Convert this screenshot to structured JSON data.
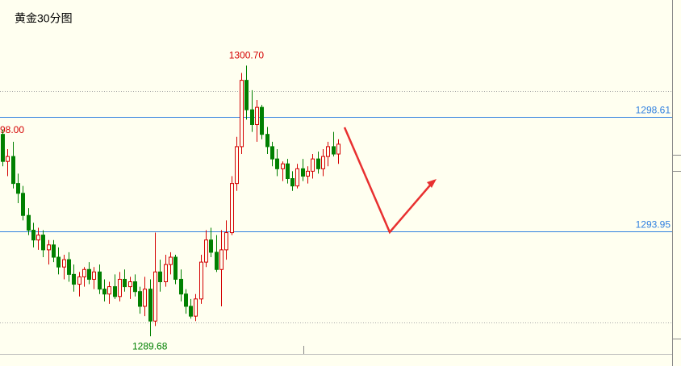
{
  "chart_data": {
    "type": "candlestick",
    "title": "黄金30分图",
    "ylim": [
      1288.93,
      1303.37
    ],
    "up_color": "#d40000",
    "down_color": "#008000",
    "price_lines": [
      {
        "value": 1298.61,
        "label": "1298.61"
      },
      {
        "value": 1293.95,
        "label": "1293.95"
      }
    ],
    "grid_lines": [
      1299.66,
      1290.24
    ],
    "extremes": [
      {
        "value": 1300.7,
        "label": "1300.70"
      },
      {
        "value": 1289.68,
        "label": "1289.68"
      }
    ],
    "annotations": [
      "98.00"
    ],
    "candles": [
      [
        1297.9,
        1298.1,
        1296.6,
        1296.8
      ],
      [
        1296.8,
        1297.3,
        1296.2,
        1297.0
      ],
      [
        1297.0,
        1297.6,
        1295.7,
        1295.9
      ],
      [
        1295.9,
        1296.3,
        1295.1,
        1295.5
      ],
      [
        1295.5,
        1295.8,
        1294.4,
        1294.6
      ],
      [
        1294.6,
        1294.9,
        1293.8,
        1294.0
      ],
      [
        1294.0,
        1294.3,
        1293.3,
        1293.6
      ],
      [
        1293.6,
        1294.1,
        1293.2,
        1293.8
      ],
      [
        1293.8,
        1294.0,
        1292.9,
        1293.2
      ],
      [
        1293.2,
        1293.6,
        1292.6,
        1293.4
      ],
      [
        1293.4,
        1293.6,
        1292.7,
        1292.9
      ],
      [
        1292.9,
        1293.3,
        1292.2,
        1292.5
      ],
      [
        1292.5,
        1293.0,
        1292.0,
        1292.8
      ],
      [
        1292.8,
        1293.1,
        1291.9,
        1292.2
      ],
      [
        1292.2,
        1292.6,
        1291.5,
        1291.8
      ],
      [
        1291.8,
        1292.3,
        1291.3,
        1292.1
      ],
      [
        1292.1,
        1292.5,
        1291.7,
        1292.4
      ],
      [
        1292.4,
        1292.7,
        1291.8,
        1292.0
      ],
      [
        1292.0,
        1292.5,
        1291.6,
        1292.3
      ],
      [
        1292.3,
        1292.6,
        1291.4,
        1291.6
      ],
      [
        1291.6,
        1292.0,
        1291.1,
        1291.4
      ],
      [
        1291.4,
        1291.9,
        1291.0,
        1291.7
      ],
      [
        1291.7,
        1292.2,
        1291.2,
        1291.3
      ],
      [
        1291.3,
        1292.3,
        1291.1,
        1292.0
      ],
      [
        1292.0,
        1292.4,
        1291.5,
        1291.7
      ],
      [
        1291.7,
        1292.1,
        1291.2,
        1291.9
      ],
      [
        1291.9,
        1292.2,
        1291.3,
        1291.5
      ],
      [
        1291.5,
        1291.7,
        1290.6,
        1290.9
      ],
      [
        1290.9,
        1292.1,
        1290.5,
        1291.6
      ],
      [
        1291.6,
        1292.0,
        1289.68,
        1290.3
      ],
      [
        1290.3,
        1293.9,
        1290.1,
        1292.3
      ],
      [
        1292.3,
        1292.8,
        1291.5,
        1291.9
      ],
      [
        1291.9,
        1293.0,
        1291.7,
        1292.6
      ],
      [
        1292.6,
        1293.1,
        1292.2,
        1292.9
      ],
      [
        1292.9,
        1293.0,
        1291.8,
        1292.0
      ],
      [
        1292.0,
        1292.4,
        1291.1,
        1291.4
      ],
      [
        1291.4,
        1291.6,
        1290.6,
        1290.9
      ],
      [
        1290.9,
        1291.2,
        1290.4,
        1290.5
      ],
      [
        1290.5,
        1291.4,
        1290.3,
        1291.2
      ],
      [
        1291.2,
        1293.0,
        1291.0,
        1292.7
      ],
      [
        1292.7,
        1294.0,
        1292.5,
        1293.6
      ],
      [
        1293.6,
        1294.1,
        1292.9,
        1293.1
      ],
      [
        1293.1,
        1293.8,
        1292.3,
        1292.4
      ],
      [
        1292.4,
        1294.0,
        1290.9,
        1293.2
      ],
      [
        1293.2,
        1294.4,
        1292.8,
        1293.9
      ],
      [
        1293.9,
        1296.2,
        1293.8,
        1295.9
      ],
      [
        1295.9,
        1297.8,
        1295.6,
        1297.4
      ],
      [
        1297.4,
        1300.4,
        1297.1,
        1300.1
      ],
      [
        1300.1,
        1300.7,
        1298.5,
        1298.9
      ],
      [
        1298.9,
        1299.7,
        1298.0,
        1298.3
      ],
      [
        1298.3,
        1299.3,
        1297.6,
        1299.0
      ],
      [
        1299.0,
        1299.1,
        1297.7,
        1297.9
      ],
      [
        1297.9,
        1298.2,
        1297.1,
        1297.4
      ],
      [
        1297.4,
        1297.6,
        1296.6,
        1296.9
      ],
      [
        1296.9,
        1297.3,
        1296.2,
        1296.5
      ],
      [
        1296.5,
        1296.8,
        1296.0,
        1296.7
      ],
      [
        1296.7,
        1296.9,
        1295.9,
        1296.1
      ],
      [
        1296.1,
        1296.4,
        1295.6,
        1295.8
      ],
      [
        1295.8,
        1296.7,
        1295.7,
        1296.5
      ],
      [
        1296.5,
        1296.9,
        1296.0,
        1296.2
      ],
      [
        1296.2,
        1296.6,
        1295.9,
        1296.4
      ],
      [
        1296.4,
        1297.1,
        1296.1,
        1296.9
      ],
      [
        1296.9,
        1297.2,
        1296.3,
        1296.5
      ],
      [
        1296.5,
        1297.3,
        1296.2,
        1297.0
      ],
      [
        1297.0,
        1297.6,
        1296.6,
        1297.4
      ],
      [
        1297.4,
        1298.0,
        1297.0,
        1297.1
      ],
      [
        1297.1,
        1297.7,
        1296.7,
        1297.5
      ]
    ]
  }
}
